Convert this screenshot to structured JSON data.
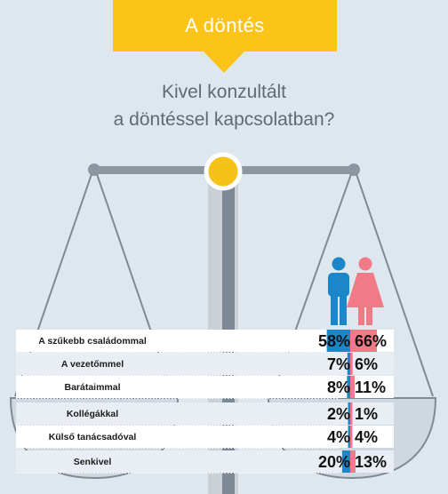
{
  "banner": {
    "title": "A döntés"
  },
  "question": {
    "line1": "Kivel konzultált",
    "line2": "a döntéssel kapcsolatban?"
  },
  "colors": {
    "background": "#dfe7ee",
    "banner": "#fcc419",
    "male": "#1b86c8",
    "female": "#f07b86",
    "beam": "#8a96a0",
    "pivot": "#f6c21a"
  },
  "icons": {
    "male": "man-icon",
    "female": "woman-icon"
  },
  "chart_data": {
    "type": "table",
    "title": "Kivel konzultált a döntéssel kapcsolatban?",
    "categories": [
      "A szűkebb családommal",
      "A vezetőmmel",
      "Barátaimmal",
      "Kollégákkal",
      "Külső tanácsadóval",
      "Senkivel"
    ],
    "series": [
      {
        "values": [
          58,
          7,
          8,
          2,
          4,
          20
        ],
        "display": [
          "58%",
          "7%",
          "8%",
          "2%",
          "4%",
          "20%"
        ]
      },
      {
        "values": [
          66,
          6,
          11,
          1,
          4,
          13
        ],
        "display": [
          "66%",
          "6%",
          "11%",
          "1%",
          "4%",
          "13%"
        ]
      }
    ],
    "unit": "%"
  }
}
